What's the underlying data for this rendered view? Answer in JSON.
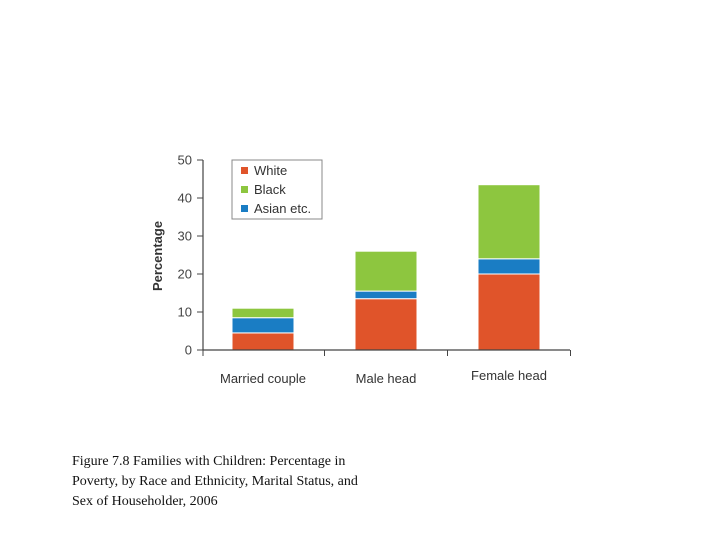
{
  "chart_data": {
    "type": "bar",
    "stacked": true,
    "title": "",
    "xlabel": "",
    "ylabel": "Percentage",
    "ylim": [
      0,
      50
    ],
    "yticks": [
      0,
      10,
      20,
      30,
      40,
      50
    ],
    "categories": [
      "Married couple",
      "Male head",
      "Female head"
    ],
    "series": [
      {
        "name": "White",
        "color": "#e0542a",
        "values": [
          4.5,
          13.5,
          20
        ]
      },
      {
        "name": "Asian etc.",
        "color": "#1a7dc4",
        "values": [
          4,
          2,
          4
        ]
      },
      {
        "name": "Black",
        "color": "#8dc63f",
        "values": [
          2.5,
          10.5,
          19.5
        ]
      }
    ],
    "legend_order": [
      "White",
      "Black",
      "Asian etc."
    ],
    "legend_position": "top-left",
    "grid": false
  },
  "caption": {
    "line1": "Figure 7.8 Families with Children:  Percentage in",
    "line2": "Poverty, by Race and  Ethnicity, Marital Status, and",
    "line3": "Sex of  Householder, 2006"
  }
}
